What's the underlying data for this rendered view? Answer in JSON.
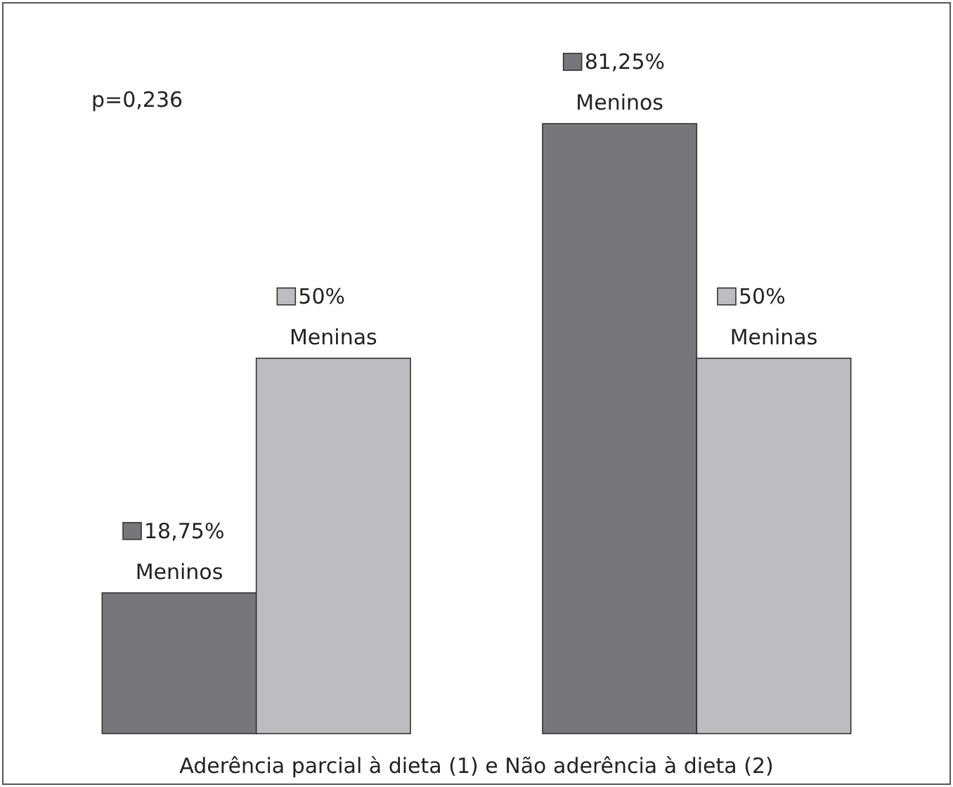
{
  "chart_data": {
    "type": "bar",
    "xlabel": "Aderência parcial à dieta (1) e Não aderência à dieta (2)",
    "categories": [
      null,
      null
    ],
    "series": [
      {
        "name": "Meninos",
        "color": "#77777b",
        "values": [
          18.75,
          81.25
        ],
        "value_labels": [
          "18,75%",
          "81,25%"
        ]
      },
      {
        "name": "Meninas",
        "color": "#bdbdc1",
        "values": [
          50,
          50
        ],
        "value_labels": [
          "50%",
          "50%"
        ]
      }
    ],
    "annotations": [
      "p=0,236"
    ],
    "legend": "left",
    "grid": false
  }
}
